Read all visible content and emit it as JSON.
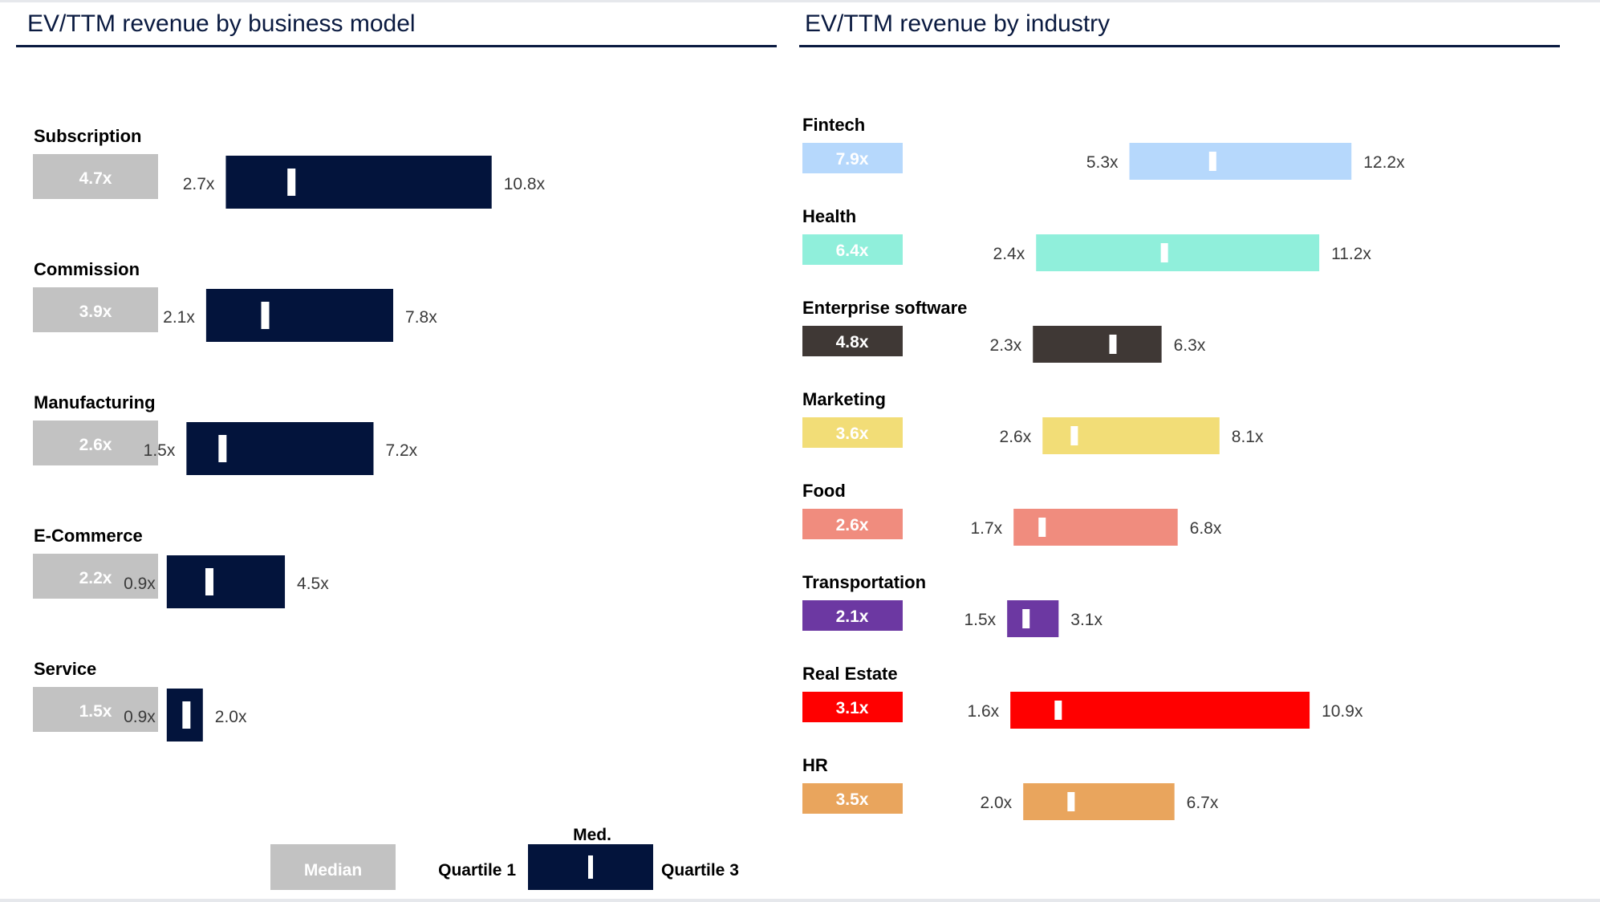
{
  "chart_data": [
    {
      "type": "range-bar",
      "title": "EV/TTM revenue by business model",
      "bar_color": "#03143c",
      "median_box_color": "#c2c2c2",
      "categories": [
        {
          "name": "Subscription",
          "median": 4.7,
          "q1": 2.7,
          "q3": 10.8,
          "median_label": "4.7x",
          "q1_label": "2.7x",
          "q3_label": "10.8x"
        },
        {
          "name": "Commission",
          "median": 3.9,
          "q1": 2.1,
          "q3": 7.8,
          "median_label": "3.9x",
          "q1_label": "2.1x",
          "q3_label": "7.8x"
        },
        {
          "name": "Manufacturing",
          "median": 2.6,
          "q1": 1.5,
          "q3": 7.2,
          "median_label": "2.6x",
          "q1_label": "1.5x",
          "q3_label": "7.2x"
        },
        {
          "name": "E-Commerce",
          "median": 2.2,
          "q1": 0.9,
          "q3": 4.5,
          "median_label": "2.2x",
          "q1_label": "0.9x",
          "q3_label": "4.5x"
        },
        {
          "name": "Service",
          "median": 1.5,
          "q1": 0.9,
          "q3": 2.0,
          "median_label": "1.5x",
          "q1_label": "0.9x",
          "q3_label": "2.0x"
        }
      ]
    },
    {
      "type": "range-bar",
      "title": "EV/TTM revenue by industry",
      "categories": [
        {
          "name": "Fintech",
          "median": 7.9,
          "q1": 5.3,
          "q3": 12.2,
          "median_label": "7.9x",
          "q1_label": "5.3x",
          "q3_label": "12.2x",
          "color": "#b6d8fc",
          "text_color": "#ffffff"
        },
        {
          "name": "Health",
          "median": 6.4,
          "q1": 2.4,
          "q3": 11.2,
          "median_label": "6.4x",
          "q1_label": "2.4x",
          "q3_label": "11.2x",
          "color": "#90efdb",
          "text_color": "#ffffff"
        },
        {
          "name": "Enterprise software",
          "median": 4.8,
          "q1": 2.3,
          "q3": 6.3,
          "median_label": "4.8x",
          "q1_label": "2.3x",
          "q3_label": "6.3x",
          "color": "#3f3835",
          "text_color": "#ffffff"
        },
        {
          "name": "Marketing",
          "median": 3.6,
          "q1": 2.6,
          "q3": 8.1,
          "median_label": "3.6x",
          "q1_label": "2.6x",
          "q3_label": "8.1x",
          "color": "#f2dd77",
          "text_color": "#ffffff"
        },
        {
          "name": "Food",
          "median": 2.6,
          "q1": 1.7,
          "q3": 6.8,
          "median_label": "2.6x",
          "q1_label": "1.7x",
          "q3_label": "6.8x",
          "color": "#f08c7e",
          "text_color": "#ffffff"
        },
        {
          "name": "Transportation",
          "median": 2.1,
          "q1": 1.5,
          "q3": 3.1,
          "median_label": "2.1x",
          "q1_label": "1.5x",
          "q3_label": "3.1x",
          "color": "#6c38a2",
          "text_color": "#ffffff"
        },
        {
          "name": "Real Estate",
          "median": 3.1,
          "q1": 1.6,
          "q3": 10.9,
          "median_label": "3.1x",
          "q1_label": "1.6x",
          "q3_label": "10.9x",
          "color": "#ff0000",
          "text_color": "#ffffff"
        },
        {
          "name": "HR",
          "median": 3.5,
          "q1": 2.0,
          "q3": 6.7,
          "median_label": "3.5x",
          "q1_label": "2.0x",
          "q3_label": "6.7x",
          "color": "#e9a55d",
          "text_color": "#ffffff"
        }
      ]
    }
  ],
  "legend": {
    "median_box_label": "Median",
    "q1_label": "Quartile 1",
    "med_label": "Med.",
    "q3_label": "Quartile 3"
  },
  "colors": {
    "title": "#0a1a40",
    "rule": "#0a1a40",
    "marker": "#ffffff"
  }
}
